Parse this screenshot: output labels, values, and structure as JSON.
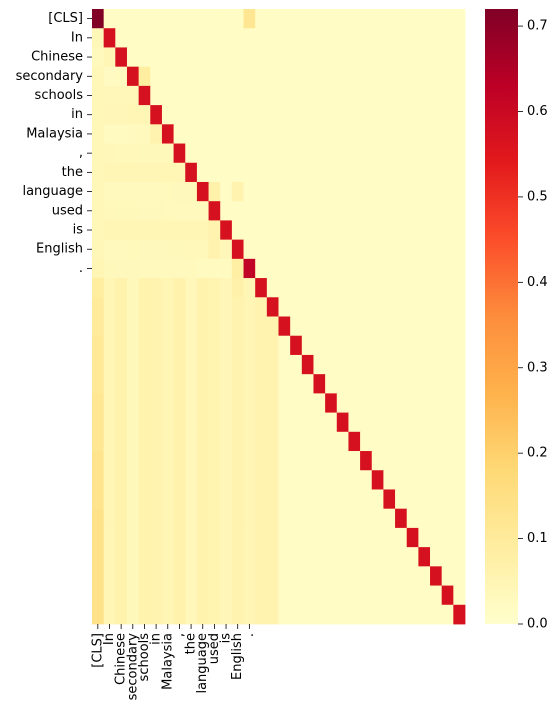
{
  "chart_data": {
    "type": "heatmap",
    "title": "",
    "xlabel": "",
    "ylabel": "",
    "n": 32,
    "x_tick_labels": [
      "[CLS]",
      "In",
      "Chinese",
      "secondary",
      "schools",
      "in",
      "Malaysia",
      ",",
      "the",
      "language",
      "used",
      "is",
      "English",
      "."
    ],
    "y_tick_labels": [
      "[CLS]",
      "In",
      "Chinese",
      "secondary",
      "schools",
      "in",
      "Malaysia",
      ",",
      "the",
      "language",
      "used",
      "is",
      "English",
      "."
    ],
    "colormap": "YlOrRd",
    "vmin": 0.0,
    "vmax": 0.72,
    "colorbar_ticks": [
      "0.0",
      "0.1",
      "0.2",
      "0.3",
      "0.4",
      "0.5",
      "0.6",
      "0.7"
    ],
    "diagonal": [
      0.72,
      0.57,
      0.57,
      0.57,
      0.57,
      0.57,
      0.57,
      0.57,
      0.57,
      0.57,
      0.57,
      0.57,
      0.57,
      0.62,
      0.57,
      0.57,
      0.57,
      0.57,
      0.57,
      0.57,
      0.57,
      0.57,
      0.57,
      0.57,
      0.57,
      0.57,
      0.57,
      0.57,
      0.57,
      0.57,
      0.57,
      0.57
    ],
    "column_0_below_diagonal": [
      0.04,
      0.03,
      0.04,
      0.04,
      0.04,
      0.04,
      0.04,
      0.04,
      0.04,
      0.04,
      0.04,
      0.04,
      0.05,
      0.09,
      0.1,
      0.1,
      0.11,
      0.11,
      0.11,
      0.12,
      0.12,
      0.12,
      0.13,
      0.13,
      0.13,
      0.14,
      0.14,
      0.14,
      0.14,
      0.14,
      0.14
    ],
    "column_13_below_diagonal": [
      0.05,
      0.05,
      0.05,
      0.05,
      0.05,
      0.05,
      0.05,
      0.05,
      0.05,
      0.05,
      0.05,
      0.05,
      0.05,
      0.05,
      0.05,
      0.05,
      0.05,
      0.05
    ],
    "background_value": 0.015,
    "highlights": [
      {
        "row": 0,
        "col": 13,
        "value": 0.12
      },
      {
        "row": 3,
        "col": 4,
        "value": 0.09
      },
      {
        "row": 9,
        "col": 10,
        "value": 0.07
      },
      {
        "row": 9,
        "col": 12,
        "value": 0.06
      },
      {
        "row": 2,
        "col": 1,
        "value": 0.05
      },
      {
        "row": 6,
        "col": 5,
        "value": 0.06
      },
      {
        "row": 12,
        "col": 10,
        "value": 0.06
      },
      {
        "row": 13,
        "col": 12,
        "value": 0.08
      },
      {
        "row": 14,
        "col": 12,
        "value": 0.07
      },
      {
        "row": 11,
        "col": 10,
        "value": 0.06
      }
    ]
  }
}
